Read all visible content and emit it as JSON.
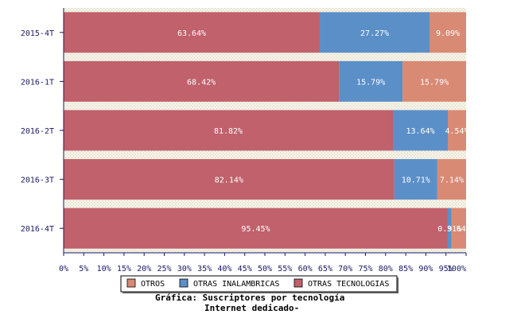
{
  "chart_data": {
    "type": "bar",
    "orientation": "horizontal",
    "stacked": true,
    "normalized": true,
    "categories": [
      "2015-4T",
      "2016-1T",
      "2016-2T",
      "2016-3T",
      "2016-4T"
    ],
    "series": [
      {
        "name": "OTRAS TECNOLOGIAS",
        "color": "#c0616b",
        "values": [
          63.64,
          68.42,
          81.82,
          82.14,
          95.45
        ],
        "labels": [
          "63.64%",
          "68.42%",
          "81.82%",
          "82.14%",
          "95.45%"
        ]
      },
      {
        "name": "OTRAS INALAMBRICAS",
        "color": "#5b8fc8",
        "values": [
          27.27,
          15.79,
          13.64,
          10.71,
          0.91
        ],
        "labels": [
          "27.27%",
          "15.79%",
          "13.64%",
          "10.71%",
          "0.91%"
        ]
      },
      {
        "name": "OTROS",
        "color": "#d98a74",
        "values": [
          9.09,
          15.79,
          4.54,
          7.14,
          3.64
        ],
        "labels": [
          "9.09%",
          "15.79%",
          "4.54%",
          "7.14%",
          "3.64%"
        ]
      }
    ],
    "xlim": [
      0,
      100
    ],
    "xticks": [
      "0%",
      "5%",
      "10%",
      "15%",
      "20%",
      "25%",
      "30%",
      "35%",
      "40%",
      "45%",
      "50%",
      "55%",
      "60%",
      "65%",
      "70%",
      "75%",
      "80%",
      "85%",
      "90%",
      "95%",
      "100%"
    ],
    "legend": {
      "placement": "bottom",
      "entries": [
        {
          "name": "OTROS",
          "color": "#d98a74"
        },
        {
          "name": "OTRAS INALAMBRICAS",
          "color": "#5b8fc8"
        },
        {
          "name": "OTRAS TECNOLOGIAS",
          "color": "#c0616b"
        }
      ]
    },
    "caption_line1": "Gráfica: Suscriptores por tecnología",
    "caption_line2": "Internet dedicado-"
  }
}
